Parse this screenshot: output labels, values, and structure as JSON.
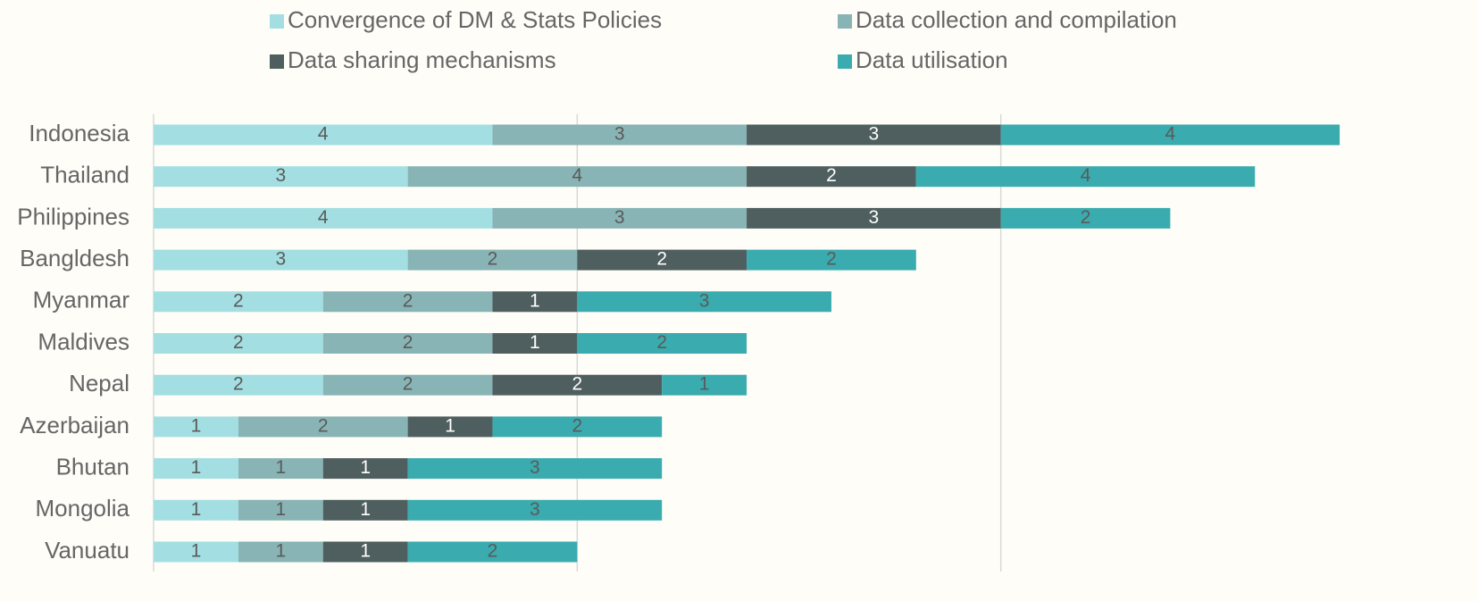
{
  "chart_data": {
    "type": "stacked_barh",
    "categories": [
      "Indonesia",
      "Thailand",
      "Philippines",
      "Bangldesh",
      "Myanmar",
      "Maldives",
      "Nepal",
      "Azerbaijan",
      "Bhutan",
      "Mongolia",
      "Vanuatu"
    ],
    "series": [
      {
        "name": "Convergence of DM & Stats Policies",
        "color": "#a3dfe2",
        "values": [
          4,
          3,
          4,
          3,
          2,
          2,
          2,
          1,
          1,
          1,
          1
        ]
      },
      {
        "name": "Data collection and compilation",
        "color": "#88b4b5",
        "values": [
          3,
          4,
          3,
          2,
          2,
          2,
          2,
          2,
          1,
          1,
          1
        ]
      },
      {
        "name": "Data sharing mechanisms",
        "color": "#4f5e5e",
        "values": [
          3,
          2,
          3,
          2,
          1,
          1,
          2,
          1,
          1,
          1,
          1
        ]
      },
      {
        "name": "Data utilisation",
        "color": "#3aabae",
        "values": [
          4,
          4,
          2,
          2,
          3,
          2,
          1,
          2,
          3,
          3,
          2
        ]
      }
    ],
    "xlim": [
      0,
      15
    ],
    "xticks": [
      0,
      5,
      10
    ],
    "grid": true
  }
}
